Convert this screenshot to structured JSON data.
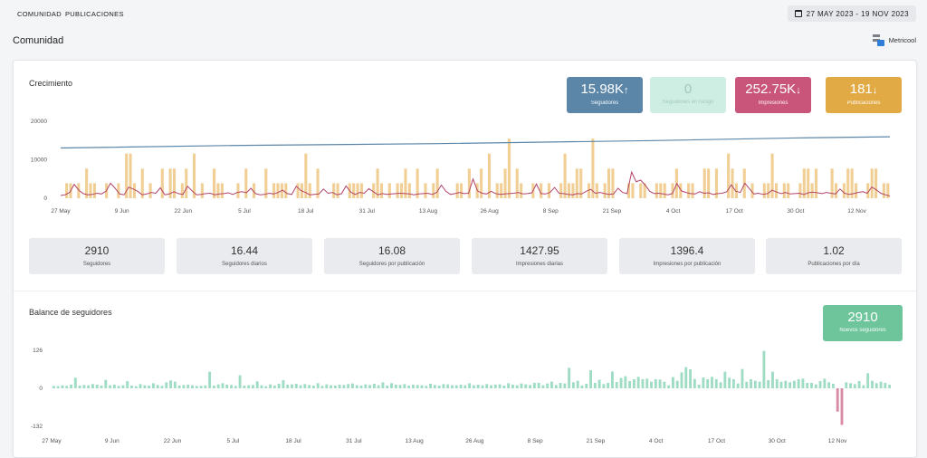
{
  "nav": {
    "items": [
      "COMUNIDAD",
      "PUBLICACIONES"
    ]
  },
  "date_range": "27 MAY 2023 - 19 NOV 2023",
  "page_title": "Comunidad",
  "brand": "Metricool",
  "growth": {
    "title": "Crecimiento",
    "kpis": [
      {
        "value": "15.98K",
        "arrow": "↑",
        "label": "Seguidores",
        "color": "#5b86a8"
      },
      {
        "value": "0",
        "arrow": "",
        "label": "Seguidores en riesgo",
        "color": "#cfeee3"
      },
      {
        "value": "252.75K",
        "arrow": "↓",
        "label": "Impresiones",
        "color": "#c9567a"
      },
      {
        "value": "181",
        "arrow": "↓",
        "label": "Publicaciones",
        "color": "#e2aa45"
      }
    ],
    "stats": [
      {
        "value": "2910",
        "label": "Seguidores"
      },
      {
        "value": "16.44",
        "label": "Seguidores diarios"
      },
      {
        "value": "16.08",
        "label": "Seguidores por publicación"
      },
      {
        "value": "1427.95",
        "label": "Impresiones diarias"
      },
      {
        "value": "1396.4",
        "label": "Impresiones por publicación"
      },
      {
        "value": "1.02",
        "label": "Publicaciones por día"
      }
    ]
  },
  "balance": {
    "title": "Balance de seguidores",
    "kpi": {
      "value": "2910",
      "label": "Nuevos seguidores",
      "color": "#6fc59b"
    }
  },
  "colors": {
    "followers_line": "#5b86a8",
    "impressions_line": "#b2456a",
    "posts_bars": "#f1cf94",
    "balance_pos": "#9fdcc4",
    "balance_neg": "#d98ba5"
  },
  "chart_data": [
    {
      "type": "line",
      "title": "Crecimiento",
      "x_ticks": [
        "27 May",
        "9 Jun",
        "22 Jun",
        "5 Jul",
        "18 Jul",
        "31 Jul",
        "13 Aug",
        "26 Aug",
        "8 Sep",
        "21 Sep",
        "4 Oct",
        "17 Oct",
        "30 Oct",
        "12 Nov"
      ],
      "y_ticks": [
        "20000",
        "10000",
        "0"
      ],
      "ylim": [
        0,
        20000
      ],
      "x_range": [
        "2023-05-27",
        "2023-11-19"
      ],
      "series": [
        {
          "name": "Seguidores",
          "kind": "line",
          "points": [
            [
              "2023-05-27",
              13070
            ],
            [
              "2023-07-01",
              13700
            ],
            [
              "2023-08-15",
              14200
            ],
            [
              "2023-09-30",
              15000
            ],
            [
              "2023-10-31",
              15700
            ],
            [
              "2023-11-19",
              15980
            ]
          ]
        },
        {
          "name": "Impresiones",
          "kind": "line",
          "values": [
            700,
            900,
            1500,
            3600,
            2100,
            1200,
            900,
            1000,
            1300,
            1100,
            1800,
            3900,
            2600,
            1100,
            900,
            2900,
            2400,
            1800,
            900,
            1100,
            1500,
            1300,
            2700,
            900,
            1100,
            1700,
            1200,
            1000,
            3100,
            1900,
            900,
            1000,
            1200,
            1300,
            900,
            1100,
            1200,
            1400,
            1000,
            1500,
            1700,
            1400,
            2600,
            1200,
            900,
            1000,
            1300,
            1100,
            1500,
            2100,
            1200,
            1000,
            3100,
            2000,
            1500,
            900,
            1000,
            1100,
            2400,
            1300,
            1500,
            900,
            1200,
            3200,
            1600,
            1000,
            1500,
            1300,
            2500,
            1700,
            900,
            1200,
            1000,
            1100,
            1200,
            1300,
            1200,
            1100,
            900,
            1100,
            1200,
            1300,
            1000,
            1500,
            3400,
            1800,
            1000,
            1200,
            1500,
            1200,
            1300,
            5000,
            1900,
            1300,
            1100,
            1800,
            1200,
            1000,
            1100,
            1200,
            1300,
            1500,
            1100,
            1200,
            1400,
            3700,
            1200,
            1100,
            1500,
            2800,
            1300,
            1200,
            1000,
            900,
            1200,
            1100,
            1800,
            2300,
            1300,
            1500,
            1200,
            1000,
            1100,
            2600,
            1500,
            1200,
            6800,
            4300,
            4700,
            3400,
            1800,
            1200,
            1300,
            1100,
            900,
            1200,
            3800,
            1900,
            1500,
            1200,
            1100,
            1700,
            1300,
            1400,
            1000,
            1200,
            1300,
            1700,
            3500,
            1800,
            1500,
            3900,
            2500,
            1100,
            1300,
            1000,
            1200,
            2100,
            1600,
            1200,
            1500,
            1100,
            1200,
            1300,
            1000,
            1400,
            1600,
            1400,
            1200,
            1500,
            1300,
            1100,
            2400,
            1300,
            1000,
            1200,
            1500,
            1700,
            1300,
            2900,
            2200,
            1300,
            900,
            600
          ]
        },
        {
          "name": "Publicaciones",
          "kind": "bar",
          "values": [
            0,
            3900,
            3900,
            1,
            3900,
            0,
            7700,
            3900,
            3900,
            0,
            0,
            3900,
            1,
            0,
            3900,
            0,
            11600,
            11600,
            3900,
            0,
            7700,
            0,
            3900,
            0,
            0,
            7700,
            1,
            7700,
            7700,
            0,
            3900,
            7700,
            0,
            11600,
            1,
            3900,
            1,
            0,
            7700,
            3900,
            3900,
            0,
            0,
            0,
            3900,
            0,
            7700,
            0,
            3900,
            0,
            0,
            7700,
            1,
            3900,
            3900,
            3900,
            3900,
            0,
            0,
            3900,
            3900,
            11600,
            3900,
            0,
            7700,
            0,
            0,
            1,
            3900,
            3900,
            0,
            0,
            3900,
            3900,
            3900,
            3900,
            0,
            1,
            3900,
            7700,
            3900,
            0,
            3900,
            0,
            3900,
            3900,
            7700,
            3900,
            0,
            7700,
            0,
            3900,
            0,
            3900,
            7700,
            0,
            0,
            1,
            0,
            3900,
            3900,
            0,
            7700,
            0,
            3900,
            7700,
            0,
            11600,
            0,
            3900,
            3900,
            7700,
            15500,
            0,
            7700,
            3900,
            0,
            0,
            3900,
            0,
            3900,
            0,
            3900,
            0,
            0,
            3900,
            11600,
            3900,
            3900,
            7700,
            7700,
            0,
            3900,
            15500,
            3900,
            0,
            3900,
            7700,
            7700,
            0,
            1,
            0,
            3900,
            3900,
            1,
            3900,
            3900,
            0,
            0,
            3900,
            3900,
            3900,
            0,
            3900,
            7700,
            3900,
            0,
            3900,
            3900,
            0,
            0,
            7700,
            7700,
            0,
            7700,
            0,
            0,
            11600,
            7700,
            3900,
            0,
            7700,
            1,
            3900,
            0,
            0,
            3900,
            3900,
            11600,
            3900,
            0,
            3900,
            3900,
            0,
            0,
            3900,
            7700,
            7700,
            3900,
            7700,
            0,
            0,
            1,
            7700,
            3900,
            0,
            3900,
            7700,
            7700,
            3900,
            1,
            0,
            3900,
            7700,
            7700,
            0,
            3900,
            3900
          ]
        }
      ]
    },
    {
      "type": "bar",
      "title": "Balance de seguidores",
      "x_ticks": [
        "27 May",
        "9 Jun",
        "22 Jun",
        "5 Jul",
        "18 Jul",
        "31 Jul",
        "13 Aug",
        "26 Aug",
        "8 Sep",
        "21 Sep",
        "4 Oct",
        "17 Oct",
        "30 Oct",
        "12 Nov"
      ],
      "y_ticks": [
        "126",
        "0",
        "-132"
      ],
      "ylim": [
        -132,
        126
      ],
      "x_range": [
        "2023-05-27",
        "2023-11-19"
      ],
      "series": [
        {
          "name": "Nuevos seguidores",
          "values": [
            8,
            7,
            10,
            8,
            12,
            35,
            9,
            11,
            10,
            14,
            12,
            9,
            28,
            10,
            12,
            8,
            10,
            24,
            9,
            7,
            14,
            10,
            9,
            17,
            11,
            8,
            20,
            26,
            22,
            9,
            11,
            12,
            10,
            8,
            8,
            10,
            55,
            9,
            13,
            17,
            12,
            11,
            8,
            43,
            9,
            10,
            11,
            23,
            10,
            7,
            13,
            9,
            15,
            27,
            12,
            13,
            15,
            10,
            14,
            11,
            9,
            17,
            8,
            13,
            10,
            9,
            12,
            11,
            14,
            16,
            10,
            9,
            13,
            11,
            15,
            10,
            20,
            9,
            17,
            12,
            11,
            14,
            9,
            12,
            11,
            10,
            8,
            15,
            11,
            9,
            14,
            13,
            10,
            10,
            12,
            10,
            17,
            10,
            12,
            10,
            14,
            10,
            12,
            13,
            9,
            17,
            12,
            10,
            16,
            13,
            11,
            18,
            18,
            10,
            16,
            22,
            11,
            18,
            16,
            68,
            20,
            25,
            9,
            15,
            60,
            18,
            28,
            14,
            18,
            56,
            21,
            34,
            40,
            24,
            30,
            38,
            30,
            32,
            22,
            30,
            29,
            22,
            10,
            37,
            25,
            53,
            70,
            63,
            31,
            12,
            36,
            30,
            38,
            30,
            20,
            55,
            35,
            30,
            16,
            64,
            22,
            30,
            25,
            22,
            124,
            27,
            55,
            30,
            22,
            25,
            20,
            25,
            30,
            32,
            18,
            18,
            13,
            24,
            32,
            20,
            15,
            -81,
            -127,
            20,
            17,
            14,
            24,
            10,
            50,
            25,
            17,
            22,
            18,
            12
          ]
        }
      ]
    }
  ]
}
